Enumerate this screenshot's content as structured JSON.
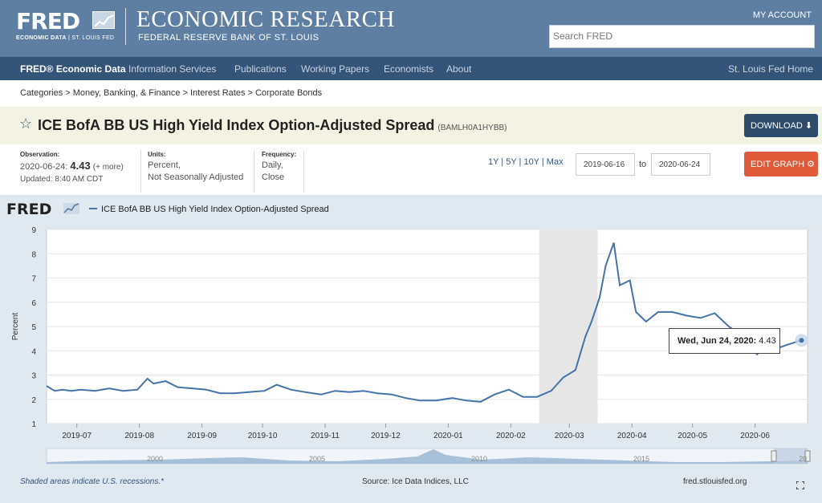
{
  "header": {
    "logo_text": "FRED",
    "logo_sub_a": "ECONOMIC DATA",
    "logo_sub_b": "ST. LOUIS FED",
    "title": "ECONOMIC RESEARCH",
    "subtitle": "FEDERAL RESERVE BANK OF ST. LOUIS",
    "account": "MY ACCOUNT",
    "search_placeholder": "Search FRED"
  },
  "nav": {
    "items": [
      "FRED® Economic Data",
      "Information Services",
      "Publications",
      "Working Papers",
      "Economists",
      "About"
    ],
    "right": "St. Louis Fed Home"
  },
  "breadcrumb": "Categories > Money, Banking, & Finance > Interest Rates > Corporate Bonds",
  "series": {
    "title": "ICE BofA BB US High Yield Index Option-Adjusted Spread",
    "id": "(BAMLH0A1HYBB)",
    "download_label": "DOWNLOAD"
  },
  "meta": {
    "observation_label": "Observation:",
    "observation_date": "2020-06-24:",
    "observation_value": "4.43",
    "observation_more": "(+ more)",
    "updated": "Updated: 8:40 AM CDT",
    "units_label": "Units:",
    "units_1": "Percent,",
    "units_2": "Not Seasonally Adjusted",
    "freq_label": "Frequency:",
    "freq_1": "Daily,",
    "freq_2": "Close",
    "ranges": "1Y | 5Y | 10Y | Max",
    "date_from": "2019-06-16",
    "to": "to",
    "date_to": "2020-06-24",
    "edit_label": "EDIT GRAPH"
  },
  "chart_data": {
    "type": "line",
    "title": "",
    "legend": "ICE BofA BB US High Yield Index Option-Adjusted Spread",
    "ylabel": "Percent",
    "ylim": [
      1,
      9
    ],
    "yticks": [
      "1",
      "2",
      "3",
      "4",
      "5",
      "6",
      "7",
      "8",
      "9"
    ],
    "xticks": [
      "2019-07",
      "2019-08",
      "2019-09",
      "2019-10",
      "2019-11",
      "2019-12",
      "2020-01",
      "2020-02",
      "2020-03",
      "2020-04",
      "2020-05",
      "2020-06"
    ],
    "recession": [
      "2020-02-15",
      "2020-03-15"
    ],
    "series": [
      {
        "name": "ICE BofA BB US High Yield Index Option-Adjusted Spread",
        "x": [
          "2019-06-16",
          "2019-06-20",
          "2019-06-24",
          "2019-06-28",
          "2019-07-03",
          "2019-07-10",
          "2019-07-17",
          "2019-07-24",
          "2019-07-31",
          "2019-08-05",
          "2019-08-08",
          "2019-08-14",
          "2019-08-20",
          "2019-08-27",
          "2019-09-03",
          "2019-09-10",
          "2019-09-17",
          "2019-09-24",
          "2019-10-02",
          "2019-10-08",
          "2019-10-15",
          "2019-10-22",
          "2019-10-30",
          "2019-11-06",
          "2019-11-13",
          "2019-11-20",
          "2019-11-27",
          "2019-12-04",
          "2019-12-11",
          "2019-12-18",
          "2019-12-26",
          "2020-01-03",
          "2020-01-10",
          "2020-01-17",
          "2020-01-24",
          "2020-01-31",
          "2020-02-07",
          "2020-02-14",
          "2020-02-21",
          "2020-02-27",
          "2020-03-04",
          "2020-03-09",
          "2020-03-12",
          "2020-03-16",
          "2020-03-19",
          "2020-03-23",
          "2020-03-26",
          "2020-03-31",
          "2020-04-03",
          "2020-04-08",
          "2020-04-14",
          "2020-04-21",
          "2020-04-28",
          "2020-05-05",
          "2020-05-12",
          "2020-05-19",
          "2020-05-26",
          "2020-06-02",
          "2020-06-09",
          "2020-06-12",
          "2020-06-17",
          "2020-06-24"
        ],
        "values": [
          2.55,
          2.35,
          2.4,
          2.35,
          2.4,
          2.35,
          2.45,
          2.35,
          2.4,
          2.85,
          2.65,
          2.75,
          2.5,
          2.45,
          2.4,
          2.25,
          2.25,
          2.3,
          2.35,
          2.6,
          2.4,
          2.3,
          2.2,
          2.35,
          2.3,
          2.35,
          2.25,
          2.2,
          2.05,
          1.95,
          1.95,
          2.05,
          1.95,
          1.9,
          2.2,
          2.4,
          2.1,
          2.1,
          2.35,
          2.9,
          3.2,
          4.6,
          5.2,
          6.2,
          7.5,
          8.45,
          6.7,
          6.9,
          5.6,
          5.2,
          5.6,
          5.6,
          5.45,
          5.35,
          5.55,
          5.0,
          4.6,
          3.85,
          4.55,
          4.1,
          4.25,
          4.43
        ]
      }
    ]
  },
  "tooltip": {
    "label": "Wed, Jun 24, 2020:",
    "value": "4.43"
  },
  "navigator_years": [
    "2000",
    "2005",
    "2010",
    "2015",
    "20"
  ],
  "footer": {
    "note": "Shaded areas indicate U.S. recessions.*",
    "source": "Source: Ice Data Indices, LLC",
    "url": "fred.stlouisfed.org"
  }
}
